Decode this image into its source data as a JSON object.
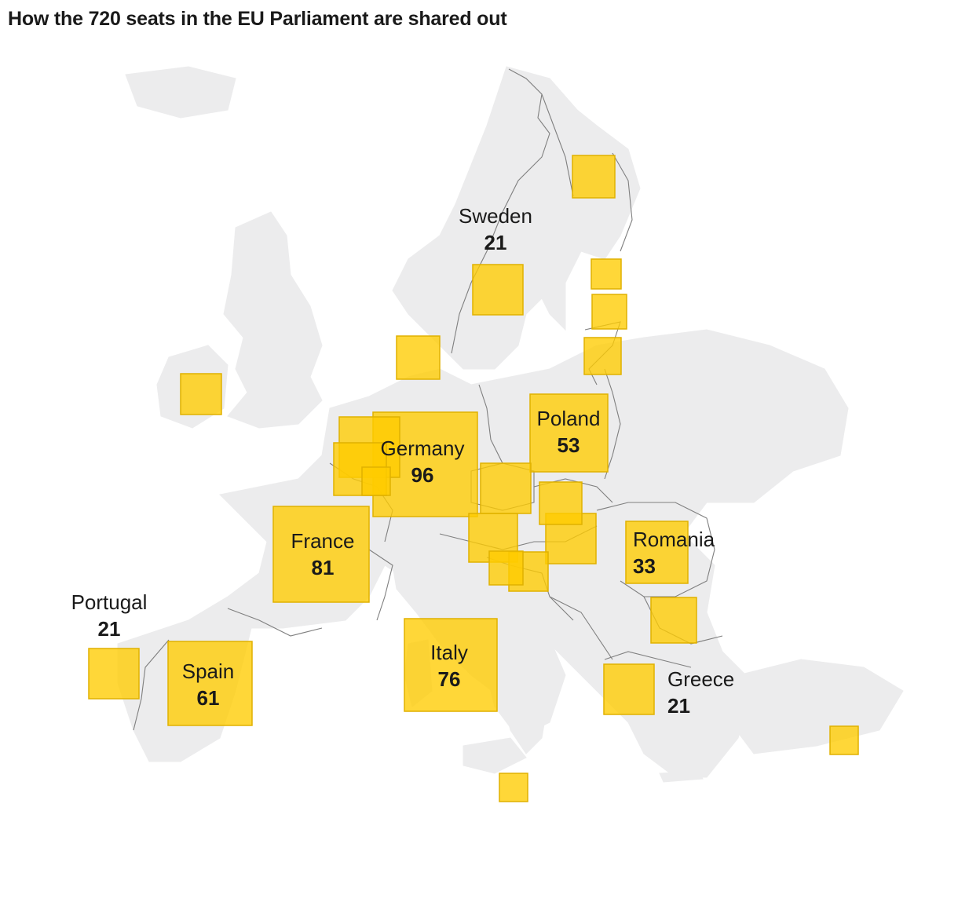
{
  "title": "How the 720 seats in the EU Parliament are shared out",
  "colors": {
    "square_fill": "#ffcc00",
    "land": "#ececed",
    "border": "#7f7f7f"
  },
  "countries": [
    {
      "id": "germany",
      "name": "Germany",
      "seats": 96,
      "label": "Germany",
      "value_label": "96"
    },
    {
      "id": "france",
      "name": "France",
      "seats": 81,
      "label": "France",
      "value_label": "81"
    },
    {
      "id": "italy",
      "name": "Italy",
      "seats": 76,
      "label": "Italy",
      "value_label": "76"
    },
    {
      "id": "spain",
      "name": "Spain",
      "seats": 61,
      "label": "Spain",
      "value_label": "61"
    },
    {
      "id": "poland",
      "name": "Poland",
      "seats": 53,
      "label": "Poland",
      "value_label": "53"
    },
    {
      "id": "romania",
      "name": "Romania",
      "seats": 33,
      "label": "Romania",
      "value_label": "33"
    },
    {
      "id": "sweden",
      "name": "Sweden",
      "seats": 21,
      "label": "Sweden",
      "value_label": "21"
    },
    {
      "id": "portugal",
      "name": "Portugal",
      "seats": 21,
      "label": "Portugal",
      "value_label": "21"
    },
    {
      "id": "greece",
      "name": "Greece",
      "seats": 21,
      "label": "Greece",
      "value_label": "21"
    },
    {
      "id": "czechia"
    },
    {
      "id": "hungary"
    },
    {
      "id": "austria"
    },
    {
      "id": "bulgaria"
    },
    {
      "id": "netherlands"
    },
    {
      "id": "belgium"
    },
    {
      "id": "luxembourg"
    },
    {
      "id": "denmark"
    },
    {
      "id": "finland"
    },
    {
      "id": "ireland"
    },
    {
      "id": "slovakia"
    },
    {
      "id": "croatia"
    },
    {
      "id": "slovenia"
    },
    {
      "id": "estonia"
    },
    {
      "id": "latvia"
    },
    {
      "id": "lithuania"
    },
    {
      "id": "malta"
    },
    {
      "id": "cyprus"
    }
  ]
}
